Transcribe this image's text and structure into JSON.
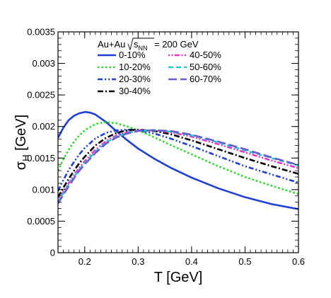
{
  "chart_data": {
    "type": "line",
    "xlabel": "T [GeV]",
    "ylabel_main": "σ",
    "ylabel_sub": "H",
    "ylabel_unit": " [GeV]",
    "xlim": [
      0.15,
      0.6
    ],
    "ylim": [
      0,
      0.0035
    ],
    "x_ticks": [
      0.2,
      0.3,
      0.4,
      0.5,
      0.6
    ],
    "x_tick_labels": [
      "0.2",
      "0.3",
      "0.4",
      "0.5",
      "0.6"
    ],
    "y_ticks": [
      0,
      0.0005,
      0.001,
      0.0015,
      0.002,
      0.0025,
      0.003,
      0.0035
    ],
    "y_tick_labels": [
      "0",
      "0.0005",
      "0.001",
      "0.0015",
      "0.002",
      "0.0025",
      "0.003",
      "0.0035"
    ],
    "legend_title": {
      "system": "Au+Au",
      "sqrt_s": "s",
      "sqrt_s_sub": "NN",
      "energy": "= 200 GeV"
    },
    "grid": false,
    "legend_position": "top",
    "series": [
      {
        "name": "0-10%",
        "color": "#1f3fd6",
        "dash": "solid",
        "x": [
          0.15,
          0.16,
          0.17,
          0.18,
          0.19,
          0.2,
          0.21,
          0.22,
          0.24,
          0.26,
          0.28,
          0.3,
          0.33,
          0.36,
          0.4,
          0.45,
          0.5,
          0.55,
          0.6
        ],
        "y": [
          0.00182,
          0.00198,
          0.0021,
          0.00217,
          0.00221,
          0.00223,
          0.00222,
          0.00219,
          0.00207,
          0.00192,
          0.00178,
          0.00165,
          0.00149,
          0.00135,
          0.00119,
          0.00102,
          0.00088,
          0.00077,
          0.00069
        ]
      },
      {
        "name": "10-20%",
        "color": "#22dd22",
        "dash": "dotted",
        "x": [
          0.15,
          0.16,
          0.17,
          0.18,
          0.19,
          0.2,
          0.22,
          0.24,
          0.26,
          0.28,
          0.3,
          0.33,
          0.36,
          0.4,
          0.45,
          0.5,
          0.55,
          0.6
        ],
        "y": [
          0.0013,
          0.00148,
          0.00163,
          0.00176,
          0.00186,
          0.00194,
          0.00204,
          0.00207,
          0.00205,
          0.002,
          0.00194,
          0.00183,
          0.00171,
          0.00156,
          0.00137,
          0.0012,
          0.00106,
          0.00093
        ]
      },
      {
        "name": "20-30%",
        "color": "#1f3fd6",
        "dash": "dashdotdot",
        "x": [
          0.15,
          0.16,
          0.17,
          0.18,
          0.19,
          0.2,
          0.22,
          0.24,
          0.26,
          0.28,
          0.3,
          0.33,
          0.36,
          0.4,
          0.45,
          0.5,
          0.55,
          0.6
        ],
        "y": [
          0.00098,
          0.00115,
          0.00131,
          0.00144,
          0.00156,
          0.00166,
          0.00181,
          0.0019,
          0.00194,
          0.00195,
          0.00194,
          0.00189,
          0.00181,
          0.00169,
          0.00153,
          0.00137,
          0.00124,
          0.00111
        ]
      },
      {
        "name": "30-40%",
        "color": "#000000",
        "dash": "dashdot",
        "x": [
          0.15,
          0.16,
          0.17,
          0.18,
          0.19,
          0.2,
          0.22,
          0.24,
          0.26,
          0.28,
          0.3,
          0.33,
          0.36,
          0.4,
          0.45,
          0.5,
          0.55,
          0.6
        ],
        "y": [
          0.00088,
          0.00103,
          0.00117,
          0.0013,
          0.00142,
          0.00152,
          0.0017,
          0.00182,
          0.0019,
          0.00194,
          0.00195,
          0.00193,
          0.00188,
          0.00178,
          0.00164,
          0.0015,
          0.00137,
          0.00125
        ]
      },
      {
        "name": "40-50%",
        "color": "#ee33cc",
        "dash": "dotdotdash",
        "x": [
          0.15,
          0.16,
          0.17,
          0.18,
          0.19,
          0.2,
          0.22,
          0.24,
          0.26,
          0.28,
          0.3,
          0.33,
          0.36,
          0.4,
          0.45,
          0.5,
          0.55,
          0.6
        ],
        "y": [
          0.00082,
          0.00097,
          0.0011,
          0.00123,
          0.00135,
          0.00145,
          0.00163,
          0.00177,
          0.00186,
          0.00191,
          0.00194,
          0.00194,
          0.00191,
          0.00184,
          0.00172,
          0.00159,
          0.00146,
          0.00134
        ]
      },
      {
        "name": "50-60%",
        "color": "#22cccc",
        "dash": "dashed",
        "x": [
          0.15,
          0.16,
          0.17,
          0.18,
          0.19,
          0.2,
          0.22,
          0.24,
          0.26,
          0.28,
          0.3,
          0.33,
          0.36,
          0.4,
          0.45,
          0.5,
          0.55,
          0.6
        ],
        "y": [
          0.0008,
          0.00094,
          0.00108,
          0.0012,
          0.00132,
          0.00142,
          0.0016,
          0.00175,
          0.00184,
          0.0019,
          0.00193,
          0.00194,
          0.00192,
          0.00186,
          0.00175,
          0.00162,
          0.0015,
          0.00138
        ]
      },
      {
        "name": "60-70%",
        "color": "#6a5acd",
        "dash": "longdash",
        "x": [
          0.15,
          0.16,
          0.17,
          0.18,
          0.19,
          0.2,
          0.22,
          0.24,
          0.26,
          0.28,
          0.3,
          0.33,
          0.36,
          0.4,
          0.45,
          0.5,
          0.55,
          0.6
        ],
        "y": [
          0.00078,
          0.00092,
          0.00105,
          0.00118,
          0.0013,
          0.0014,
          0.00158,
          0.00173,
          0.00183,
          0.00189,
          0.00193,
          0.00194,
          0.00193,
          0.00187,
          0.00176,
          0.00164,
          0.00151,
          0.00139
        ]
      }
    ]
  }
}
